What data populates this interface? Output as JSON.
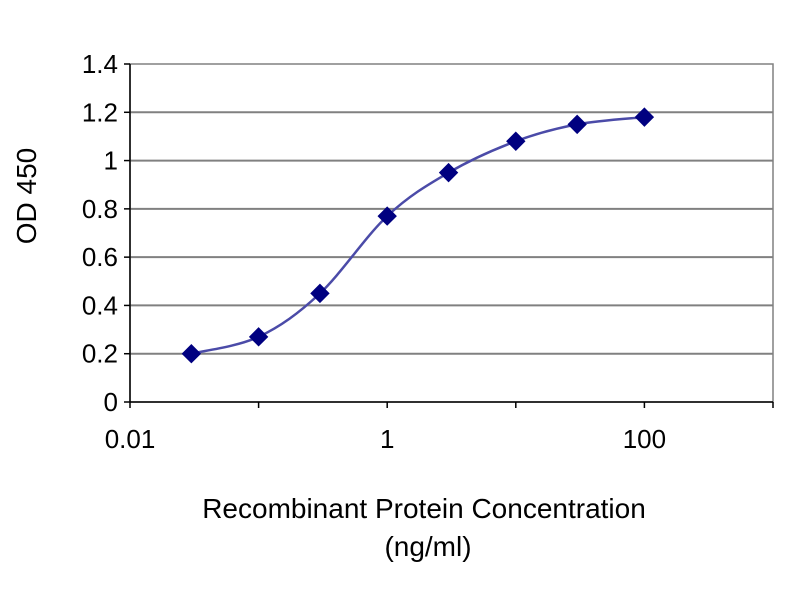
{
  "chart_data": {
    "type": "scatter",
    "title": "",
    "xlabel_line1": "Recombinant  Protein  Concentration",
    "xlabel_line2": "(ng/ml)",
    "ylabel": "OD 450",
    "x_scale": "log",
    "xlim": [
      0.01,
      1000
    ],
    "ylim": [
      0,
      1.4
    ],
    "x_ticks": [
      {
        "value": 0.01,
        "label": "0.01"
      },
      {
        "value": 1,
        "label": "1"
      },
      {
        "value": 100,
        "label": "100"
      }
    ],
    "y_ticks": [
      {
        "value": 0,
        "label": "0"
      },
      {
        "value": 0.2,
        "label": "0.2"
      },
      {
        "value": 0.4,
        "label": "0.4"
      },
      {
        "value": 0.6,
        "label": "0.6"
      },
      {
        "value": 0.8,
        "label": "0.8"
      },
      {
        "value": 1,
        "label": "1"
      },
      {
        "value": 1.2,
        "label": "1.2"
      },
      {
        "value": 1.4,
        "label": "1.4"
      }
    ],
    "grid": "horizontal",
    "legend": "none",
    "series": [
      {
        "marker": "diamond",
        "color": "#000080",
        "line_color": "#4B4BA8",
        "x": [
          0.03,
          0.1,
          0.3,
          1,
          3,
          10,
          30,
          100
        ],
        "y": [
          0.2,
          0.27,
          0.45,
          0.77,
          0.95,
          1.08,
          1.15,
          1.18
        ]
      }
    ]
  }
}
